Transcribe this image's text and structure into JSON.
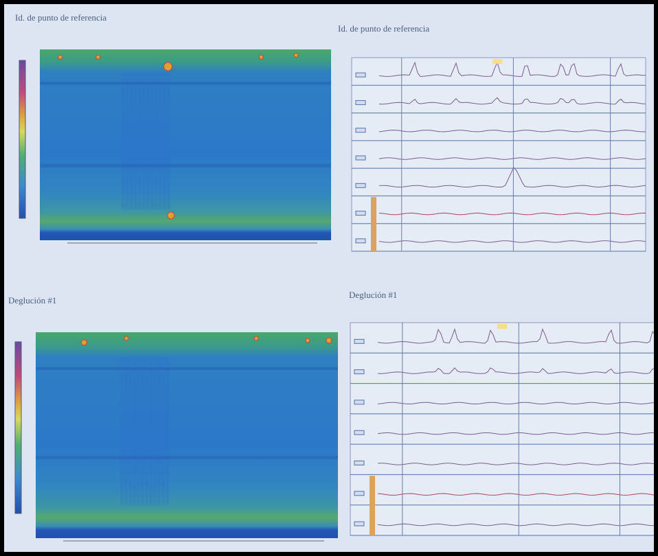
{
  "panels": [
    {
      "heading": "Id. de punto de referencia"
    },
    {
      "heading": "Id. de punto de referencia"
    },
    {
      "heading": "Deglución #1"
    },
    {
      "heading": "Deglución #1"
    }
  ]
}
